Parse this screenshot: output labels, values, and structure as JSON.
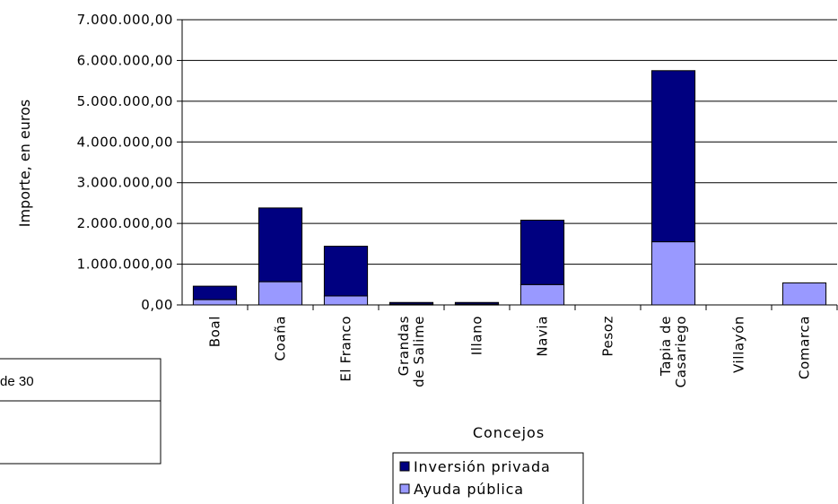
{
  "chart_data": {
    "type": "bar",
    "stacked": true,
    "xlabel": "Concejos",
    "ylabel": "Importe, en euros",
    "ylim": [
      0,
      7000000
    ],
    "yticks": [
      {
        "value": 0,
        "label": "0,00"
      },
      {
        "value": 1000000,
        "label": "1.000.000,00"
      },
      {
        "value": 2000000,
        "label": "2.000.000,00"
      },
      {
        "value": 3000000,
        "label": "3.000.000,00"
      },
      {
        "value": 4000000,
        "label": "4.000.000,00"
      },
      {
        "value": 5000000,
        "label": "5.000.000,00"
      },
      {
        "value": 6000000,
        "label": "6.000.000,00"
      },
      {
        "value": 7000000,
        "label": "7.000.000,00"
      }
    ],
    "categories": [
      [
        "Boal"
      ],
      [
        "Coaña"
      ],
      [
        "El Franco"
      ],
      [
        "Grandas",
        "de Salime"
      ],
      [
        "Illano"
      ],
      [
        "Navia"
      ],
      [
        "Pesoz"
      ],
      [
        "Tapia de",
        "Casariego"
      ],
      [
        "Villayón"
      ],
      [
        "Comarca"
      ]
    ],
    "series": [
      {
        "name": "Ayuda pública",
        "color": "#9999ff",
        "values": [
          130000,
          570000,
          220000,
          20000,
          20000,
          500000,
          0,
          1550000,
          0,
          540000
        ]
      },
      {
        "name": "Inversión privada",
        "color": "#000080",
        "values": [
          330000,
          1810000,
          1220000,
          40000,
          40000,
          1580000,
          0,
          4200000,
          0,
          0
        ]
      }
    ],
    "legend": "bottom",
    "grid": true
  },
  "side_box": {
    "text": "de 30"
  }
}
